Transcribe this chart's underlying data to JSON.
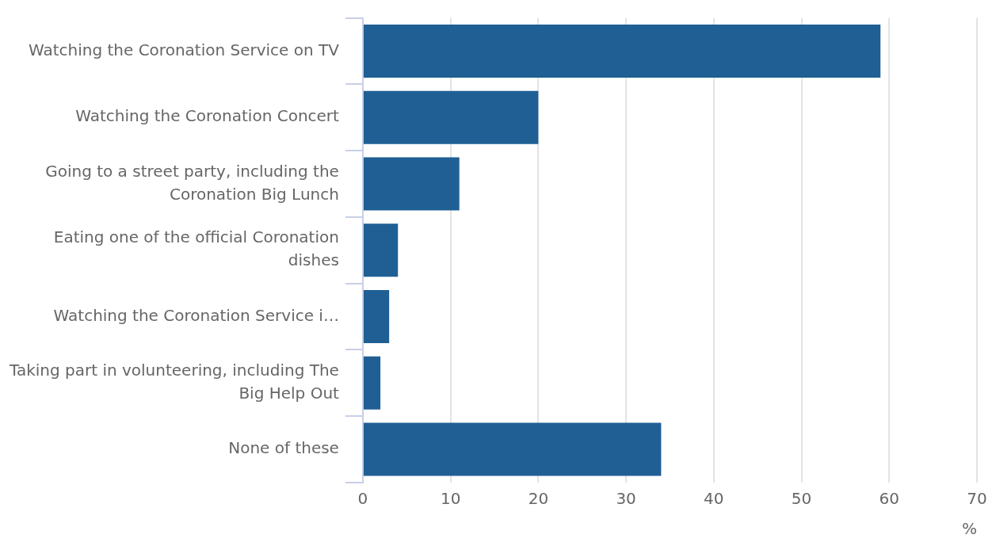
{
  "chart_data": {
    "type": "bar",
    "orientation": "horizontal",
    "xlabel": "%",
    "categories": [
      "Watching the Coronation Service on TV",
      "Watching the Coronation Concert",
      "Going to a street party, including the Coronation Big Lunch",
      "Eating one of the official Coronation dishes",
      "Watching the Coronation Service i…",
      "Taking part in volunteering, including The Big Help Out",
      "None of these"
    ],
    "values": [
      59,
      20,
      11,
      4,
      3,
      2,
      34
    ],
    "color": "#1f5f94",
    "xlim": [
      0,
      70
    ],
    "xticks": [
      0,
      10,
      20,
      30,
      40,
      50,
      60,
      70
    ],
    "grid": "x",
    "legend": false
  }
}
